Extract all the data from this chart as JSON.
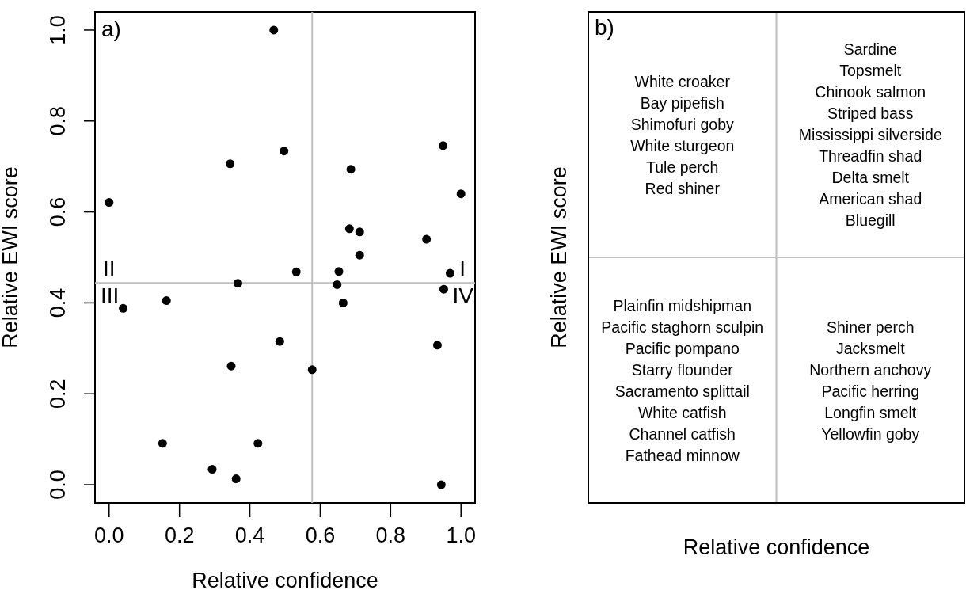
{
  "chart_data": [
    {
      "type": "scatter",
      "xlabel": "Relative confidence",
      "ylabel": "Relative EWI score",
      "color": "#000000",
      "marker": "circle",
      "x": [
        0.468,
        0.344,
        0.497,
        0.0,
        0.949,
        0.687,
        1.0,
        0.683,
        0.712,
        0.902,
        0.712,
        0.532,
        0.653,
        0.969,
        0.366,
        0.648,
        0.951,
        0.163,
        0.04,
        0.665,
        0.485,
        0.933,
        0.347,
        0.577,
        0.152,
        0.423,
        0.293,
        0.361,
        0.944
      ],
      "values": [
        1.0,
        0.706,
        0.734,
        0.621,
        0.746,
        0.694,
        0.64,
        0.563,
        0.556,
        0.54,
        0.505,
        0.468,
        0.469,
        0.465,
        0.443,
        0.44,
        0.43,
        0.405,
        0.388,
        0.4,
        0.315,
        0.307,
        0.261,
        0.253,
        0.091,
        0.091,
        0.034,
        0.013,
        0.0
      ],
      "xlim": [
        -0.04,
        1.04
      ],
      "ylim": [
        -0.04,
        1.04
      ],
      "xticks": [
        {
          "value": 0,
          "label": "0.0"
        },
        0.2,
        0.4,
        0.6,
        0.8,
        {
          "value": 1,
          "label": "1.0"
        }
      ],
      "yticks": [
        {
          "value": 0,
          "label": "0.0"
        },
        0.2,
        0.4,
        0.6,
        0.8,
        {
          "value": 1,
          "label": "1.0"
        }
      ],
      "ref_lines": [
        {
          "axis": "x",
          "value": 0.577,
          "color": "#bebebe"
        },
        {
          "axis": "y",
          "value": 0.444,
          "color": "#bebebe"
        }
      ],
      "annotations": [
        "a)",
        "I",
        "II",
        "III",
        "IV"
      ]
    },
    {
      "type": "other",
      "xlabel": "Relative confidence",
      "ylabel": "Relative EWI score",
      "annotations": [
        "b)",
        "White croaker\nBay pipefish\nShimofuri goby\nWhite sturgeon\nTule perch\nRed shiner",
        "Sardine\nTopsmelt\nChinook salmon\nStriped bass\nMississippi silverside\nThreadfin shad\nDelta smelt\nAmerican shad\nBluegill",
        "Plainfin midshipman\nPacific staghorn sculpin\nPacific pompano\nStarry flounder\nSacramento splittail\nWhite catfish\nChannel catfish\nFathead minnow",
        "Shiner perch\nJacksmelt\nNorthern anchovy\nPacific herring\nLongfin smelt\nYellowfin goby"
      ]
    }
  ]
}
